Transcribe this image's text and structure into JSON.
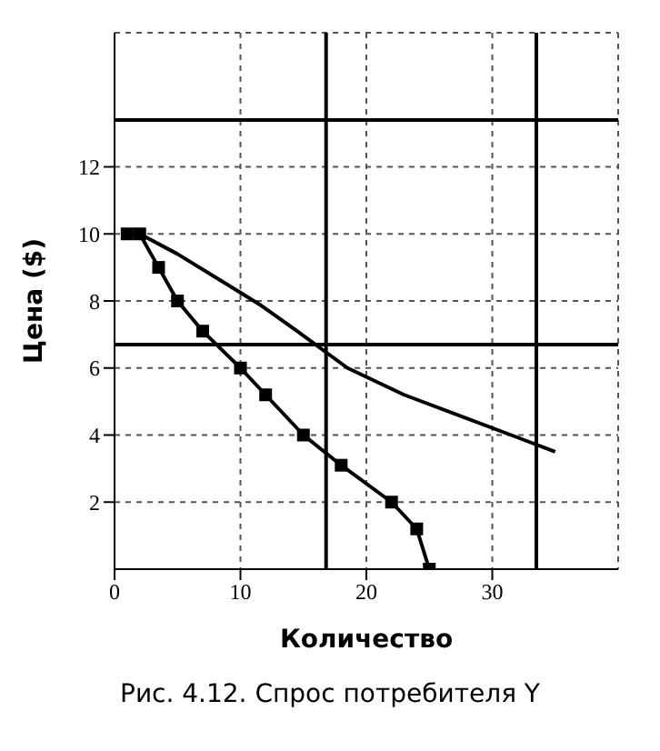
{
  "chart_data": {
    "type": "line",
    "title": "Рис. 4.12. Спрос потребителя Y",
    "xlabel": "Количество",
    "ylabel": "Цена ($)",
    "xlim": [
      0,
      40
    ],
    "xticks": [
      0,
      10,
      20,
      30
    ],
    "ylim": [
      0,
      16
    ],
    "yticks": [
      2,
      4,
      6,
      8,
      10,
      12
    ],
    "grid": true,
    "marker": "square",
    "line_style": "solid",
    "series": [
      {
        "color": "#000000",
        "x": [
          1,
          2,
          3.5,
          5,
          7,
          10,
          12,
          15,
          18,
          22,
          24,
          25
        ],
        "values": [
          10,
          10,
          9,
          8,
          7.1,
          6,
          5.2,
          4,
          3.1,
          2,
          1.2,
          0
        ]
      },
      {
        "color": "#000000",
        "marker": "none",
        "x": [
          2,
          5,
          11.5,
          14.5,
          18.5,
          23,
          31.5,
          35
        ],
        "values": [
          10,
          9.4,
          7.9,
          7.1,
          6,
          5.2,
          4,
          3.5
        ]
      }
    ],
    "ref_lines": [
      {
        "axis": "y",
        "value": 13.4
      },
      {
        "axis": "y",
        "value": 6.7
      },
      {
        "axis": "x",
        "value": 16.8
      },
      {
        "axis": "x",
        "value": 33.5
      }
    ]
  }
}
